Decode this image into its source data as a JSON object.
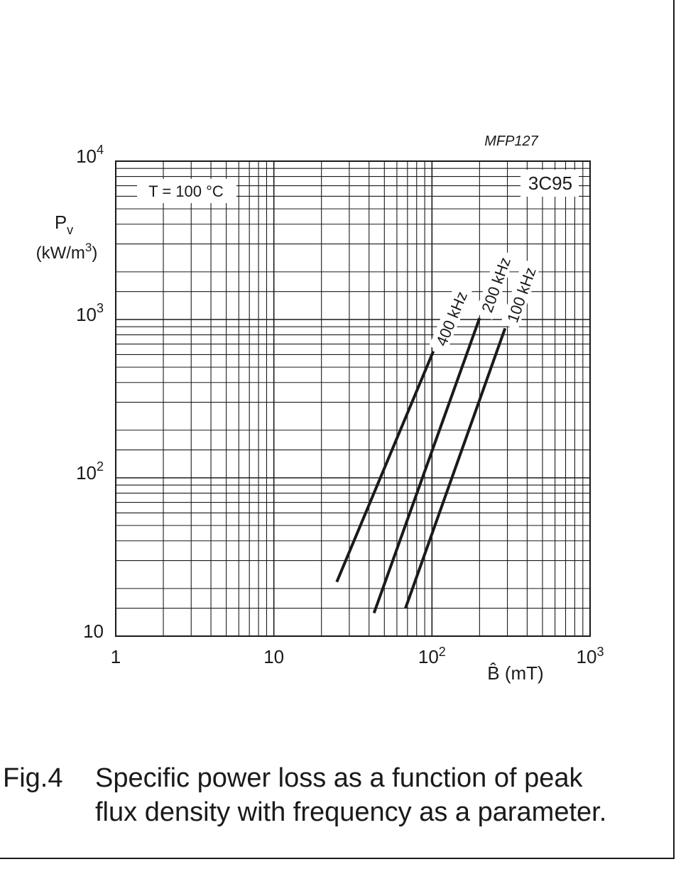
{
  "figure_id": "MFP127",
  "material": "3C95",
  "condition": "T = 100 °C",
  "caption": {
    "number": "Fig.4",
    "line1": "Specific power loss as a function of peak",
    "line2": "flux density with frequency as a parameter."
  },
  "chart_data": {
    "type": "line",
    "title": "",
    "xlabel": "B̂  (mT)",
    "ylabel": {
      "symbol": "P",
      "subscript": "v",
      "unit": "(kW/m",
      "unit_exp": "3",
      "unit_close": ")"
    },
    "xscale": "log",
    "yscale": "log",
    "xlim": [
      1,
      1000
    ],
    "ylim": [
      10,
      10000
    ],
    "grid": true,
    "x_ticks": [
      {
        "value": 1,
        "base": "1",
        "exp": ""
      },
      {
        "value": 10,
        "base": "10",
        "exp": ""
      },
      {
        "value": 100,
        "base": "10",
        "exp": "2"
      },
      {
        "value": 1000,
        "base": "10",
        "exp": "3"
      }
    ],
    "y_ticks": [
      {
        "value": 10,
        "base": "10",
        "exp": ""
      },
      {
        "value": 100,
        "base": "10",
        "exp": "2"
      },
      {
        "value": 1000,
        "base": "10",
        "exp": "3"
      },
      {
        "value": 10000,
        "base": "10",
        "exp": "4"
      }
    ],
    "series": [
      {
        "name": "400 kHz",
        "x": [
          25,
          102
        ],
        "y": [
          22,
          630
        ]
      },
      {
        "name": "200 kHz",
        "x": [
          43,
          200
        ],
        "y": [
          14,
          1020
        ]
      },
      {
        "name": "100 kHz",
        "x": [
          68,
          290
        ],
        "y": [
          15,
          880
        ]
      }
    ]
  }
}
